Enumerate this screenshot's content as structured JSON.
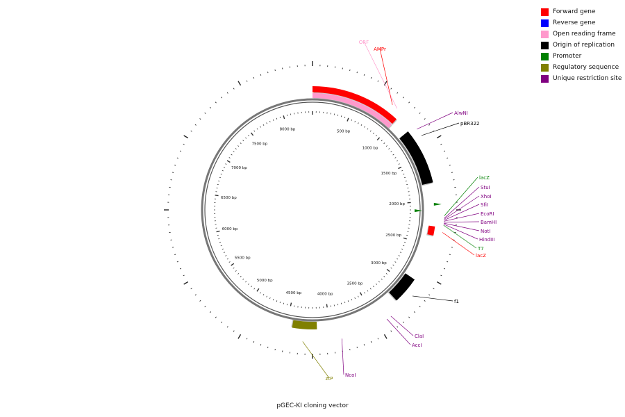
{
  "title": "pGEC-KI cloning vector",
  "legend": [
    {
      "label": "Forward gene",
      "color": "#ff0000"
    },
    {
      "label": "Reverse gene",
      "color": "#0000ff"
    },
    {
      "label": "Open reading frame",
      "color": "#ff99cc"
    },
    {
      "label": "Origin of replication",
      "color": "#000000"
    },
    {
      "label": "Promoter",
      "color": "#008000"
    },
    {
      "label": "Regulatory sequence",
      "color": "#808000"
    },
    {
      "label": "Unique restriction site",
      "color": "#800080"
    }
  ],
  "plasmid": {
    "length": 8400,
    "scale_labels": [
      "500 bp",
      "1000 bp",
      "1500 bp",
      "2000 bp",
      "2500 bp",
      "3000 bp",
      "3500 bp",
      "4000 bp",
      "4500 bp",
      "5000 bp",
      "5500 bp",
      "6000 bp",
      "6500 bp",
      "7000 bp",
      "7500 bp",
      "8000 bp"
    ]
  },
  "features": [
    {
      "name": "AMPr",
      "type": "forward",
      "start": 0,
      "end": 1000,
      "color": "#ff0000"
    },
    {
      "name": "ORF",
      "type": "orf",
      "start": 0,
      "end": 1000,
      "color": "#ff99cc"
    },
    {
      "name": "pBR322",
      "type": "origin",
      "start": 1180,
      "end": 1800,
      "color": "#000000"
    },
    {
      "name": "f1",
      "type": "origin",
      "start": 2900,
      "end": 3200,
      "color": "#000000"
    },
    {
      "name": "lacZ",
      "type": "forward",
      "start": 2280,
      "end": 2380,
      "color": "#ff0000"
    },
    {
      "name": "ztP",
      "type": "regulatory",
      "start": 4150,
      "end": 4430,
      "color": "#808000"
    }
  ],
  "labels": [
    {
      "text": "ORF",
      "color": "#ff99cc",
      "pos": 930
    },
    {
      "text": "AMPr",
      "color": "#ff0000",
      "pos": 870
    },
    {
      "text": "AlwNI",
      "color": "#800080",
      "pos": 1220
    },
    {
      "text": "pBR322",
      "color": "#000000",
      "pos": 1300
    },
    {
      "text": "lacZ",
      "color": "#008000",
      "pos": 2160
    },
    {
      "text": "StuI",
      "color": "#800080",
      "pos": 2185
    },
    {
      "text": "XhoI",
      "color": "#800080",
      "pos": 2195
    },
    {
      "text": "SfiI",
      "color": "#800080",
      "pos": 2205
    },
    {
      "text": "EcoRI",
      "color": "#800080",
      "pos": 2215
    },
    {
      "text": "BamHI",
      "color": "#800080",
      "pos": 2225
    },
    {
      "text": "NotI",
      "color": "#800080",
      "pos": 2235
    },
    {
      "text": "HindIII",
      "color": "#800080",
      "pos": 2245
    },
    {
      "text": "T7",
      "color": "#008000",
      "pos": 2255
    },
    {
      "text": "lacZ",
      "color": "#ff0000",
      "pos": 2330
    },
    {
      "text": "f1",
      "color": "#000000",
      "pos": 3050
    },
    {
      "text": "ClaI",
      "color": "#800080",
      "pos": 3350
    },
    {
      "text": "AccI",
      "color": "#800080",
      "pos": 3400
    },
    {
      "text": "NcoI",
      "color": "#800080",
      "pos": 3900
    },
    {
      "text": "ztP",
      "color": "#808000",
      "pos": 4300
    }
  ]
}
